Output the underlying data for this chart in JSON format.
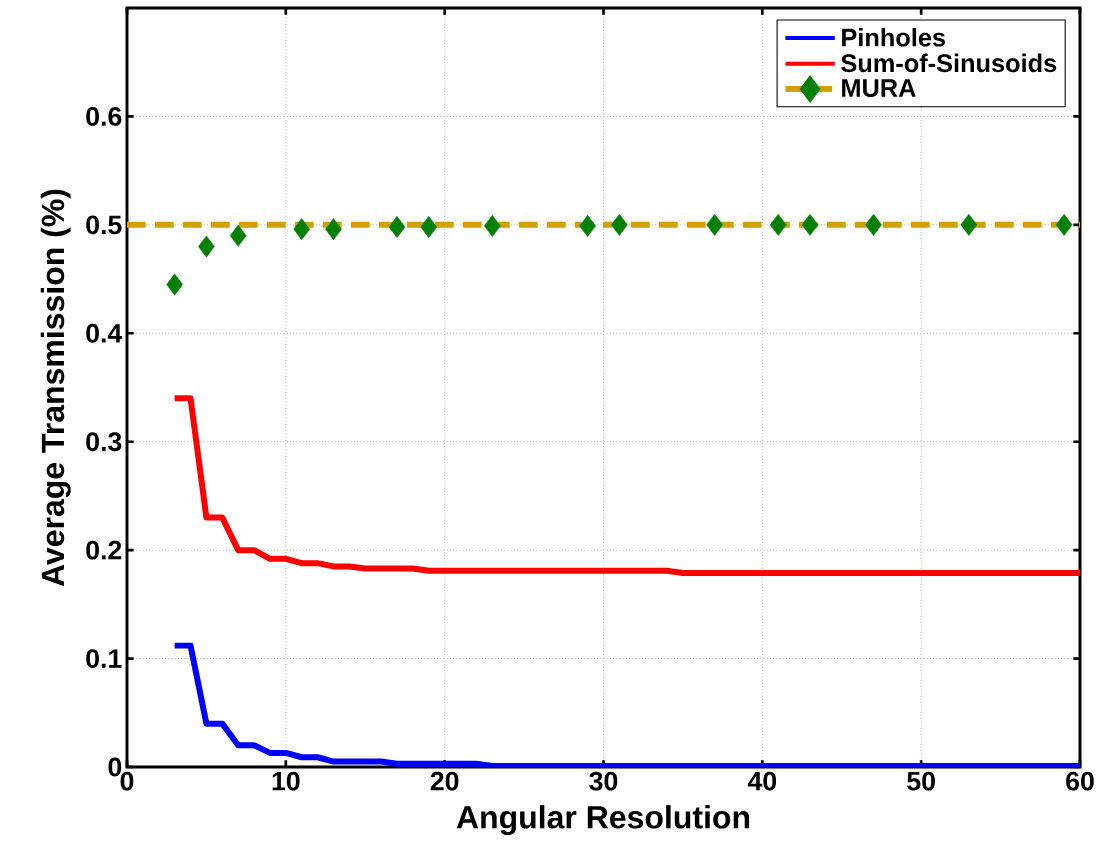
{
  "chart_data": {
    "type": "line",
    "xlabel": "Angular Resolution",
    "ylabel": "Average Transmission  (%)",
    "xlim": [
      0,
      60
    ],
    "ylim": [
      0,
      0.7
    ],
    "xticks": [
      0,
      10,
      20,
      30,
      40,
      50,
      60
    ],
    "yticks": [
      0,
      0.1,
      0.2,
      0.3,
      0.4,
      0.5,
      0.6
    ],
    "grid": true,
    "legend": "top right",
    "series": [
      {
        "name": "Pinholes",
        "color": "#0000ff",
        "x": [
          3,
          4,
          5,
          6,
          7,
          8,
          9,
          10,
          11,
          12,
          13,
          16,
          17,
          22,
          23,
          60
        ],
        "values": [
          0.112,
          0.112,
          0.04,
          0.04,
          0.02,
          0.02,
          0.013,
          0.013,
          0.009,
          0.009,
          0.005,
          0.005,
          0.003,
          0.003,
          0.001,
          0.001
        ]
      },
      {
        "name": "Sum-of-Sinusoids",
        "color": "#ff0000",
        "x": [
          3,
          4,
          5,
          6,
          7,
          8,
          9,
          10,
          11,
          12,
          13,
          14,
          15,
          18,
          19,
          34,
          35,
          60
        ],
        "values": [
          0.34,
          0.34,
          0.23,
          0.23,
          0.2,
          0.2,
          0.192,
          0.192,
          0.188,
          0.188,
          0.185,
          0.185,
          0.183,
          0.183,
          0.181,
          0.181,
          0.179,
          0.179
        ]
      },
      {
        "name": "MURA",
        "color": "#008000",
        "type": "scatter",
        "marker": "diamond",
        "x": [
          3,
          5,
          7,
          11,
          13,
          17,
          19,
          23,
          29,
          31,
          37,
          41,
          43,
          47,
          53,
          59
        ],
        "values": [
          0.445,
          0.48,
          0.49,
          0.496,
          0.496,
          0.498,
          0.498,
          0.499,
          0.499,
          0.5,
          0.5,
          0.5,
          0.5,
          0.5,
          0.5,
          0.5
        ]
      }
    ],
    "ref_lines": [
      {
        "axis": "y",
        "value": 0.5,
        "color": "#d4a000",
        "line_style": "dashed"
      }
    ]
  }
}
